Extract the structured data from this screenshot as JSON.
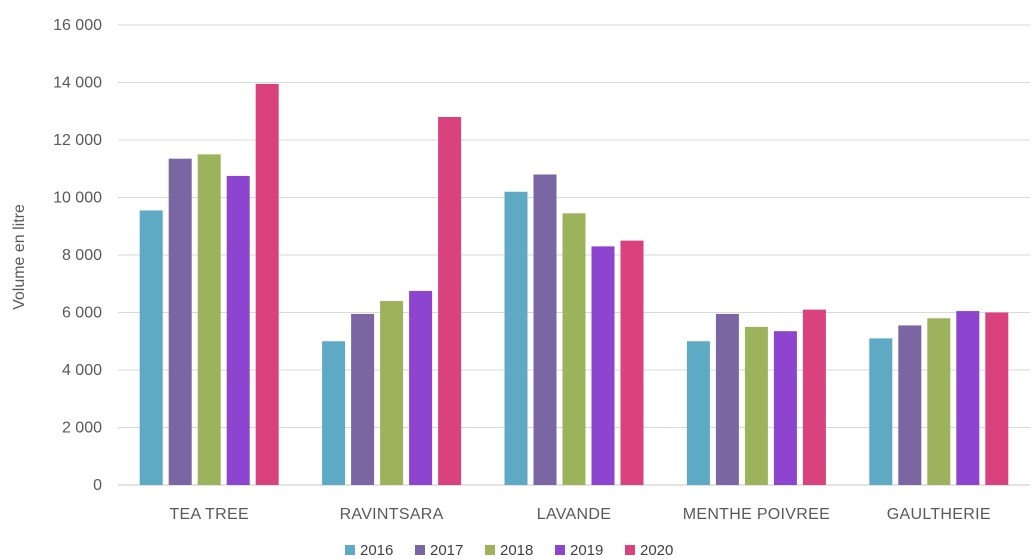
{
  "chart_data": {
    "type": "bar",
    "categories": [
      "TEA TREE",
      "RAVINTSARA",
      "LAVANDE",
      "MENTHE POIVREE",
      "GAULTHERIE"
    ],
    "series": [
      {
        "name": "2016",
        "color": "#5ea9c3",
        "values": [
          9550,
          5000,
          10200,
          5000,
          5100
        ]
      },
      {
        "name": "2017",
        "color": "#7a66a2",
        "values": [
          11350,
          5950,
          10800,
          5950,
          5550
        ]
      },
      {
        "name": "2018",
        "color": "#9db35b",
        "values": [
          11500,
          6400,
          9450,
          5500,
          5800
        ]
      },
      {
        "name": "2019",
        "color": "#8d44cf",
        "values": [
          10750,
          6750,
          8300,
          5350,
          6050
        ]
      },
      {
        "name": "2020",
        "color": "#d9427d",
        "values": [
          13950,
          12800,
          8500,
          6100,
          6000
        ]
      }
    ],
    "ylabel": "Volume en litre",
    "ylim": [
      0,
      16000
    ],
    "yticks": [
      0,
      2000,
      4000,
      6000,
      8000,
      10000,
      12000,
      14000,
      16000
    ],
    "ytick_labels": [
      "0",
      "2 000",
      "4 000",
      "6 000",
      "8 000",
      "10 000",
      "12 000",
      "14 000",
      "16 000"
    ],
    "grid": true,
    "legend": "bottom-center"
  }
}
